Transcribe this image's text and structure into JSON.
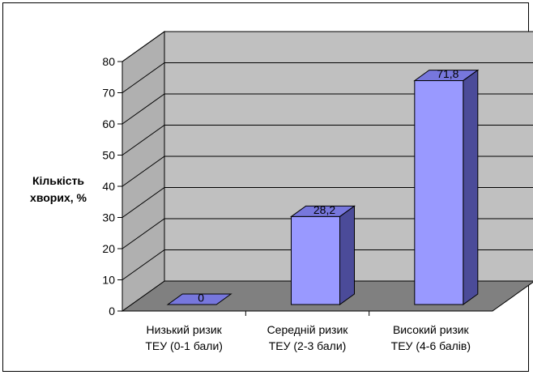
{
  "chart_data": {
    "type": "bar",
    "categories": [
      [
        "Низький ризик",
        "ТЕУ (0-1 бали)"
      ],
      [
        "Середній ризик",
        "ТЕУ (2-3 бали)"
      ],
      [
        "Високий ризик",
        "ТЕУ (4-6 балів)"
      ]
    ],
    "values": [
      0,
      28.2,
      71.8
    ],
    "value_labels": [
      "0",
      "28,2",
      "71,8"
    ],
    "ylabel": [
      "Кількість",
      "хворих, %"
    ],
    "ylim": [
      0,
      80
    ],
    "yticks": [
      0,
      10,
      20,
      30,
      40,
      50,
      60,
      70,
      80
    ],
    "grid": true,
    "three_d": true,
    "colors": {
      "bar_front": "#9999ff",
      "bar_top": "#7777dd",
      "bar_side": "#4b4b99",
      "back_wall": "#c0c0c0",
      "side_wall": "#b0b0b0",
      "floor": "#808080",
      "grid": "#000000"
    }
  }
}
